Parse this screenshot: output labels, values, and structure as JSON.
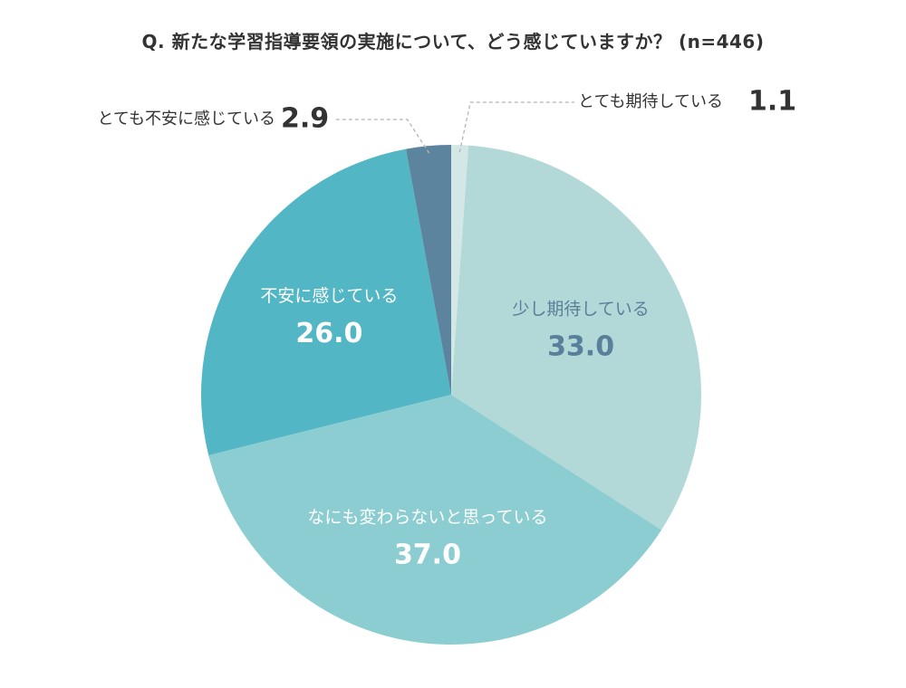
{
  "title": "Q. 新たな学習指導要領の実施について、どう感じていますか？ (n=446)",
  "chart_data": {
    "type": "pie",
    "start": "top",
    "direction": "clockwise",
    "slices": [
      {
        "label": "とても期待している",
        "value": 1.1,
        "color": "#d3e8e6",
        "label_style": "outside"
      },
      {
        "label": "少し期待している",
        "value": 33.0,
        "color": "#b2d9d8",
        "text_color": "#5a7f9a",
        "label_style": "inside"
      },
      {
        "label": "なにも変わらないと思っている",
        "value": 37.0,
        "color": "#8ccdd1",
        "text_color": "#ffffff",
        "label_style": "inside"
      },
      {
        "label": "不安に感じている",
        "value": 26.0,
        "color": "#52b6c4",
        "text_color": "#ffffff",
        "label_style": "inside"
      },
      {
        "label": "とても不安に感じている",
        "value": 2.9,
        "color": "#5d849f",
        "label_style": "outside"
      }
    ]
  }
}
